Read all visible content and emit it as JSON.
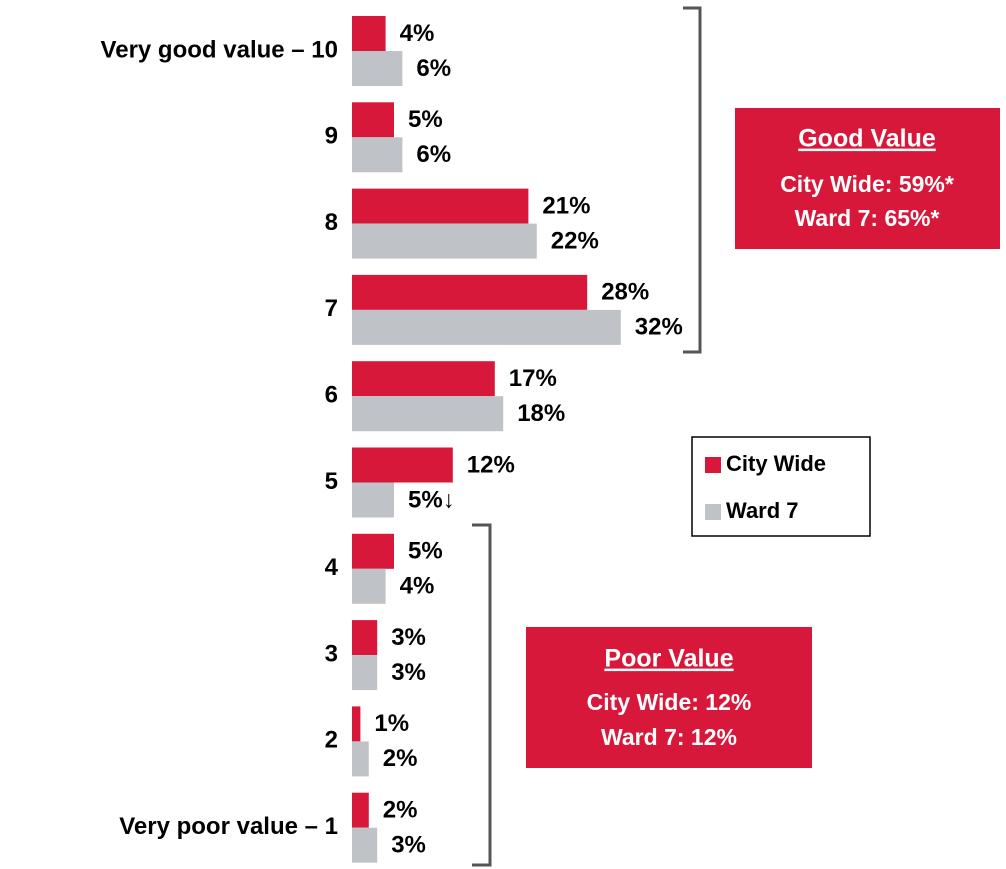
{
  "chart_data": {
    "type": "hbar",
    "categories": [
      "Very good value – 10",
      "9",
      "8",
      "7",
      "6",
      "5",
      "4",
      "3",
      "2",
      "Very poor value – 1"
    ],
    "series": [
      {
        "name": "City Wide",
        "color": "#d7183a",
        "values": [
          4,
          5,
          21,
          28,
          17,
          12,
          5,
          3,
          1,
          2
        ],
        "value_labels": [
          "4%",
          "5%",
          "21%",
          "28%",
          "17%",
          "12%",
          "5%",
          "3%",
          "1%",
          "2%"
        ]
      },
      {
        "name": "Ward 7",
        "color": "#bfc3c8",
        "values": [
          6,
          6,
          22,
          32,
          18,
          5,
          4,
          3,
          2,
          3
        ],
        "value_labels": [
          "6%",
          "6%",
          "22%",
          "32%",
          "18%",
          "5%↓",
          "4%",
          "3%",
          "2%",
          "3%"
        ]
      }
    ],
    "annotations": [
      {
        "title": "Good Value",
        "lines": [
          "City Wide: 59%*",
          "Ward 7: 65%*"
        ]
      },
      {
        "title": "Poor Value",
        "lines": [
          "City Wide: 12%",
          "Ward 7: 12%"
        ]
      }
    ]
  }
}
